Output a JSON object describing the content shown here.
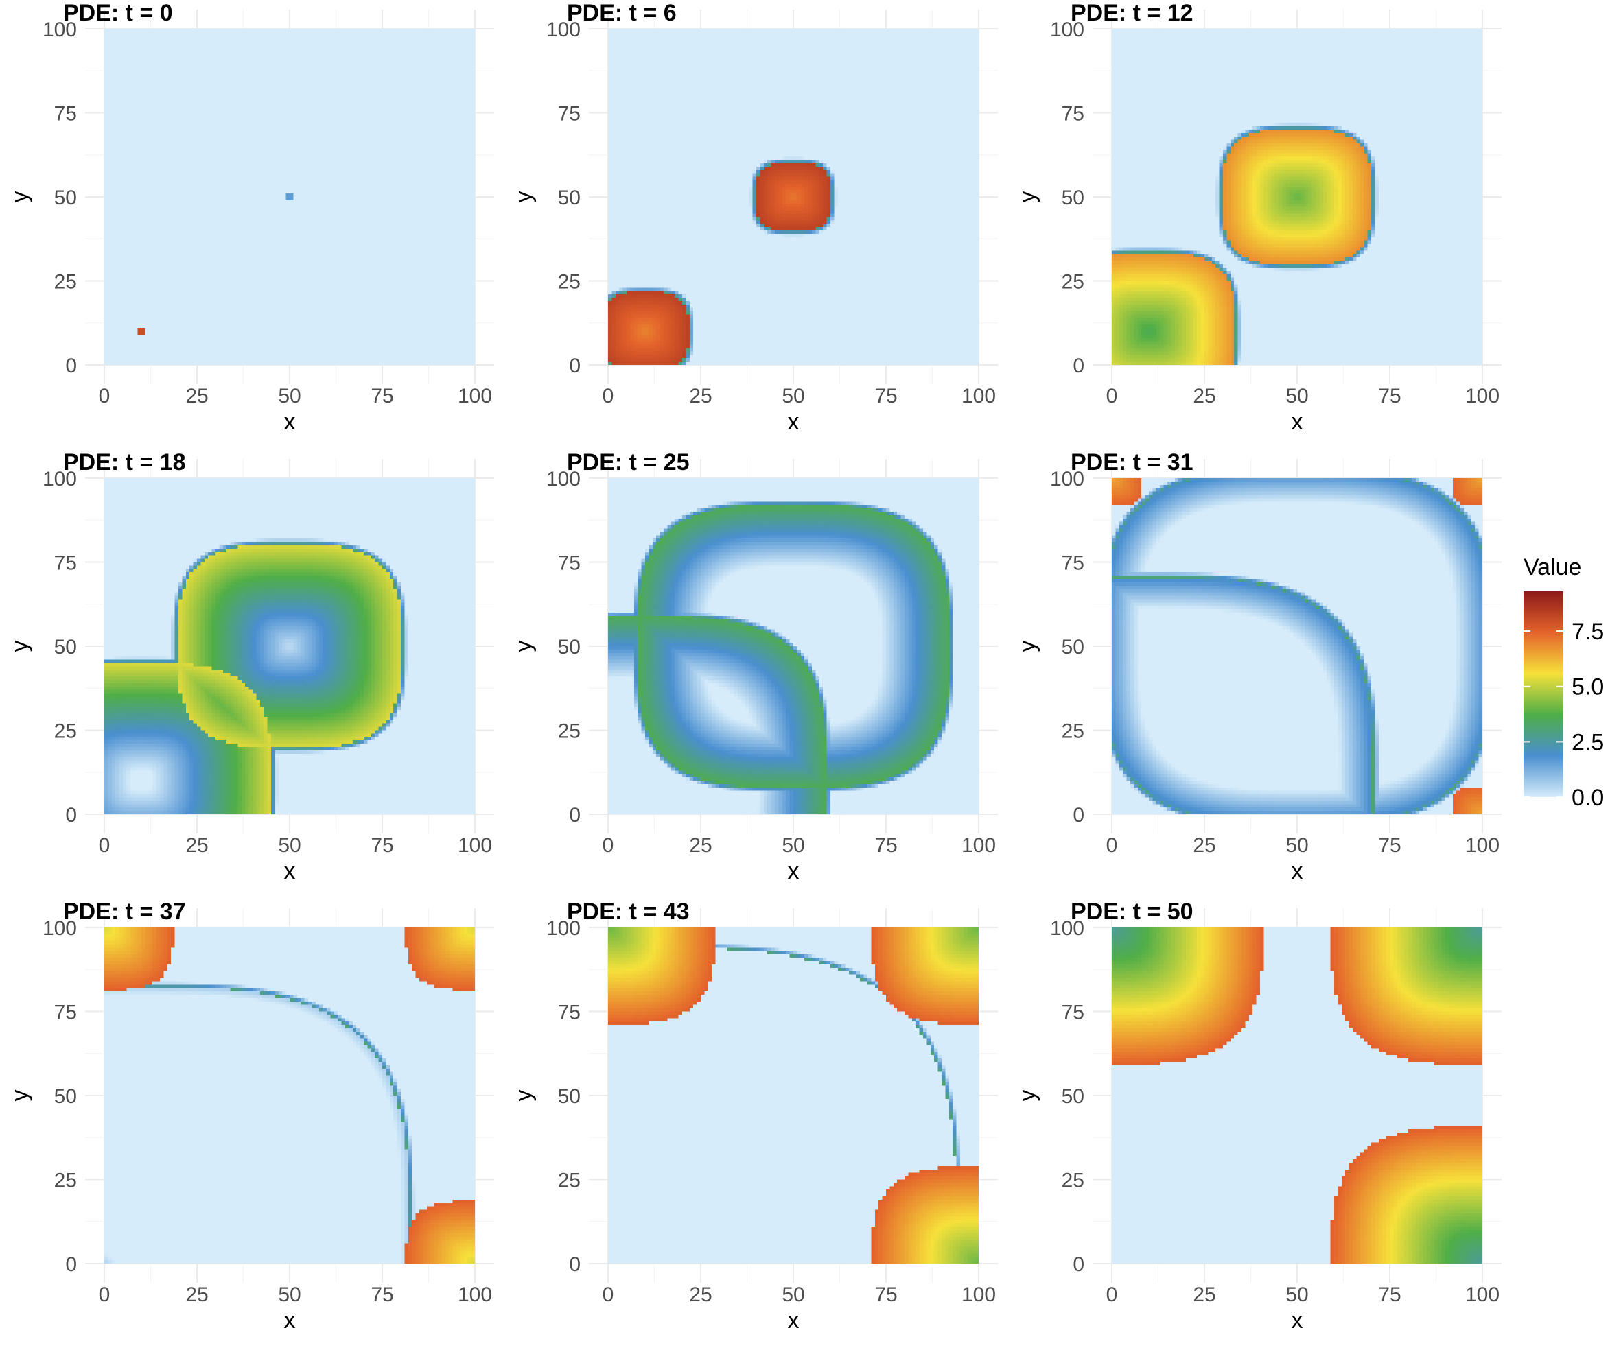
{
  "chart_data": {
    "type": "heatmap",
    "description_kind": "small multiples of a 2D PDE solution field",
    "xlabel": "x",
    "ylabel": "y",
    "xlim": [
      0,
      100
    ],
    "ylim": [
      0,
      100
    ],
    "x_ticks": [
      "0",
      "25",
      "50",
      "75",
      "100"
    ],
    "y_ticks": [
      "0",
      "25",
      "50",
      "75",
      "100"
    ],
    "grid": true,
    "legend": {
      "title": "Value",
      "placement": "right",
      "labels": [
        "7.5",
        "5.0",
        "2.5",
        "0.0"
      ],
      "range": [
        0,
        9.3
      ],
      "colors": [
        "#d6ecfa",
        "#4a8fd0",
        "#4fae48",
        "#f6e13a",
        "#e4632b",
        "#8c1a1a"
      ]
    },
    "panels": [
      {
        "title": "PDE: t = 0",
        "t": 0
      },
      {
        "title": "PDE: t = 6",
        "t": 6
      },
      {
        "title": "PDE: t = 12",
        "t": 12
      },
      {
        "title": "PDE: t = 18",
        "t": 18
      },
      {
        "title": "PDE: t = 25",
        "t": 25
      },
      {
        "title": "PDE: t = 31",
        "t": 31
      },
      {
        "title": "PDE: t = 37",
        "t": 37
      },
      {
        "title": "PDE: t = 43",
        "t": 43
      },
      {
        "title": "PDE: t = 50",
        "t": 50
      }
    ],
    "initial_sources": [
      [
        10,
        10
      ],
      [
        50,
        50
      ]
    ]
  }
}
